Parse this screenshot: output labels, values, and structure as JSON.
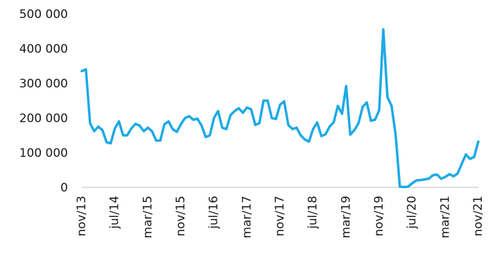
{
  "chart_data": {
    "type": "line",
    "title": "",
    "xlabel": "",
    "ylabel": "",
    "ylim": [
      0,
      500000
    ],
    "yticks": [
      0,
      100000,
      200000,
      300000,
      400000,
      500000
    ],
    "ytick_labels": [
      "0",
      "100 000",
      "200 000",
      "300 000",
      "400 000",
      "500 000"
    ],
    "grid": false,
    "legend": "none",
    "color": "#1CA9E6",
    "x": [
      "nov/13",
      "dec/13",
      "jan/14",
      "feb/14",
      "mar/14",
      "apr/14",
      "may/14",
      "jun/14",
      "jul/14",
      "aug/14",
      "sep/14",
      "oct/14",
      "nov/14",
      "dec/14",
      "jan/15",
      "feb/15",
      "mar/15",
      "apr/15",
      "may/15",
      "jun/15",
      "jul/15",
      "aug/15",
      "sep/15",
      "oct/15",
      "nov/15",
      "dec/15",
      "jan/16",
      "feb/16",
      "mar/16",
      "apr/16",
      "may/16",
      "jun/16",
      "jul/16",
      "aug/16",
      "sep/16",
      "oct/16",
      "nov/16",
      "dec/16",
      "jan/17",
      "feb/17",
      "mar/17",
      "apr/17",
      "may/17",
      "jun/17",
      "jul/17",
      "aug/17",
      "sep/17",
      "oct/17",
      "nov/17",
      "dec/17",
      "jan/18",
      "feb/18",
      "mar/18",
      "apr/18",
      "may/18",
      "jun/18",
      "jul/18",
      "aug/18",
      "sep/18",
      "oct/18",
      "nov/18",
      "dec/18",
      "jan/19",
      "feb/19",
      "mar/19",
      "apr/19",
      "may/19",
      "jun/19",
      "jul/19",
      "aug/19",
      "sep/19",
      "oct/19",
      "nov/19",
      "dec/19",
      "jan/20",
      "feb/20",
      "mar/20",
      "apr/20",
      "may/20",
      "jun/20",
      "jul/20",
      "aug/20",
      "sep/20",
      "oct/20",
      "nov/20",
      "dec/20",
      "jan/21",
      "feb/21",
      "mar/21",
      "apr/21",
      "may/21",
      "jun/21",
      "jul/21",
      "aug/21",
      "sep/21",
      "oct/21",
      "nov/21"
    ],
    "x_tick_labels": [
      "nov/13",
      "jul/14",
      "mar/15",
      "nov/15",
      "jul/16",
      "mar/17",
      "nov/17",
      "jul/18",
      "mar/19",
      "nov/19",
      "jul/20",
      "mar/21",
      "nov/21"
    ],
    "series": [
      {
        "values": [
          335000,
          340000,
          185000,
          162000,
          175000,
          165000,
          130000,
          127000,
          170000,
          190000,
          150000,
          150000,
          170000,
          183000,
          178000,
          162000,
          172000,
          162000,
          135000,
          135000,
          182000,
          190000,
          168000,
          160000,
          182000,
          200000,
          205000,
          195000,
          198000,
          178000,
          145000,
          150000,
          200000,
          220000,
          172000,
          168000,
          208000,
          220000,
          228000,
          215000,
          230000,
          225000,
          180000,
          185000,
          250000,
          250000,
          200000,
          197000,
          238000,
          248000,
          180000,
          168000,
          172000,
          150000,
          138000,
          132000,
          168000,
          187000,
          148000,
          153000,
          175000,
          188000,
          235000,
          212000,
          292000,
          152000,
          165000,
          185000,
          232000,
          245000,
          192000,
          195000,
          222000,
          455000,
          260000,
          235000,
          150000,
          2000,
          1000,
          2000,
          12000,
          20000,
          21000,
          23000,
          25000,
          35000,
          37000,
          25000,
          30000,
          38000,
          32000,
          40000,
          68000,
          95000,
          82000,
          88000,
          132000
        ]
      }
    ]
  }
}
